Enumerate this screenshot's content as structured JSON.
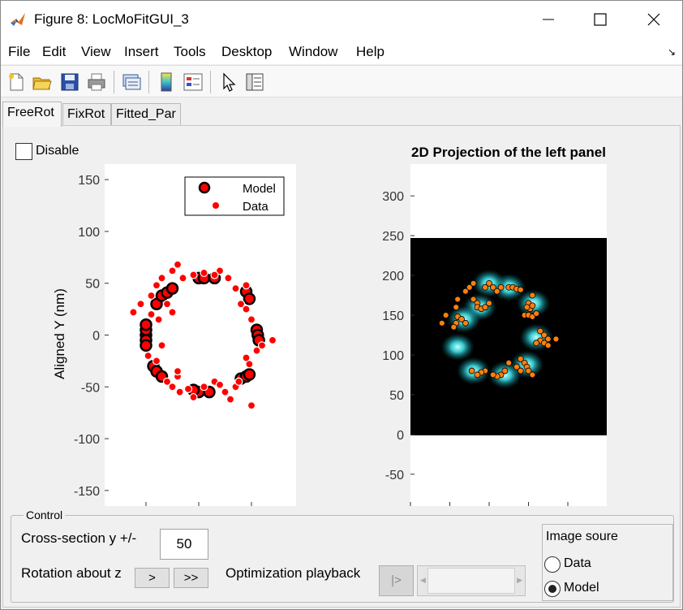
{
  "window": {
    "title": "Figure 8: LocMoFitGUI_3"
  },
  "menu": [
    "File",
    "Edit",
    "View",
    "Insert",
    "Tools",
    "Desktop",
    "Window",
    "Help"
  ],
  "tabs": [
    "FreeRot",
    "FixRot",
    "Fitted_Par"
  ],
  "active_tab": "FreeRot",
  "disable_checkbox": {
    "label": "Disable",
    "checked": false
  },
  "left_plot": {
    "ylabel": "Aligned Y (nm)",
    "yticks": [
      "150",
      "100",
      "50",
      "0",
      "-50",
      "-100",
      "-150"
    ],
    "legend": [
      "Model",
      "Data"
    ]
  },
  "right_plot": {
    "title": "2D Projection of the left panel",
    "yticks": [
      "300",
      "250",
      "200",
      "150",
      "100",
      "50",
      "0",
      "-50"
    ]
  },
  "chart_data": [
    {
      "type": "scatter",
      "ylabel": "Aligned Y (nm)",
      "ylim": [
        -165,
        165
      ],
      "legend": [
        "Model",
        "Data"
      ],
      "legend_position": "top-right",
      "series": [
        {
          "name": "Model",
          "color": "#ff0000",
          "edge": "#000000",
          "points": [
            [
              -40,
              30
            ],
            [
              -35,
              38
            ],
            [
              -30,
              41
            ],
            [
              -25,
              45
            ],
            [
              -50,
              0
            ],
            [
              -50,
              -5
            ],
            [
              -50,
              -10
            ],
            [
              -50,
              5
            ],
            [
              -50,
              10
            ],
            [
              -43,
              -30
            ],
            [
              -40,
              -35
            ],
            [
              -35,
              -40
            ],
            [
              0,
              -55
            ],
            [
              -5,
              -53
            ],
            [
              10,
              -55
            ],
            [
              40,
              -42
            ],
            [
              45,
              -40
            ],
            [
              48,
              -38
            ],
            [
              55,
              5
            ],
            [
              56,
              0
            ],
            [
              57,
              -5
            ],
            [
              0,
              55
            ],
            [
              5,
              55
            ],
            [
              15,
              55
            ],
            [
              45,
              42
            ],
            [
              48,
              35
            ]
          ]
        },
        {
          "name": "Data",
          "color": "#ff0000",
          "points": [
            [
              -55,
              30
            ],
            [
              -62,
              22
            ],
            [
              -45,
              20
            ],
            [
              -38,
              15
            ],
            [
              -48,
              -20
            ],
            [
              -40,
              -25
            ],
            [
              -30,
              -45
            ],
            [
              -20,
              -40
            ],
            [
              -25,
              -50
            ],
            [
              -18,
              -55
            ],
            [
              -10,
              -52
            ],
            [
              -5,
              -60
            ],
            [
              5,
              -50
            ],
            [
              15,
              -45
            ],
            [
              20,
              -48
            ],
            [
              25,
              -55
            ],
            [
              30,
              -62
            ],
            [
              35,
              -50
            ],
            [
              38,
              -45
            ],
            [
              50,
              -68
            ],
            [
              48,
              -28
            ],
            [
              45,
              -22
            ],
            [
              55,
              -15
            ],
            [
              60,
              -10
            ],
            [
              70,
              -5
            ],
            [
              50,
              15
            ],
            [
              45,
              25
            ],
            [
              40,
              30
            ],
            [
              35,
              45
            ],
            [
              45,
              48
            ],
            [
              28,
              55
            ],
            [
              20,
              62
            ],
            [
              15,
              58
            ],
            [
              5,
              60
            ],
            [
              -5,
              58
            ],
            [
              -15,
              55
            ],
            [
              -20,
              68
            ],
            [
              -25,
              62
            ],
            [
              -35,
              55
            ],
            [
              -40,
              48
            ],
            [
              -45,
              38
            ],
            [
              -30,
              30
            ],
            [
              -25,
              22
            ],
            [
              -35,
              -10
            ],
            [
              -20,
              -35
            ]
          ]
        }
      ]
    },
    {
      "type": "heatmap",
      "title": "2D Projection of the left panel",
      "ylim": [
        -90,
        340
      ],
      "image_extent_y": [
        0,
        250
      ],
      "colormap": "black-cyan-white",
      "series": [
        {
          "name": "Data",
          "color": "#ff7f0e",
          "points": [
            [
              95,
              185
            ],
            [
              100,
              190
            ],
            [
              105,
              185
            ],
            [
              110,
              180
            ],
            [
              115,
              185
            ],
            [
              125,
              185
            ],
            [
              130,
              185
            ],
            [
              135,
              183
            ],
            [
              140,
              182
            ],
            [
              80,
              190
            ],
            [
              75,
              185
            ],
            [
              70,
              180
            ],
            [
              80,
              170
            ],
            [
              85,
              165
            ],
            [
              85,
              160
            ],
            [
              90,
              158
            ],
            [
              95,
              160
            ],
            [
              100,
              165
            ],
            [
              60,
              170
            ],
            [
              58,
              160
            ],
            [
              60,
              148
            ],
            [
              65,
              145
            ],
            [
              70,
              140
            ],
            [
              58,
              140
            ],
            [
              55,
              135
            ],
            [
              155,
              175
            ],
            [
              150,
              165
            ],
            [
              152,
              158
            ],
            [
              148,
              160
            ],
            [
              155,
              162
            ],
            [
              145,
              150
            ],
            [
              150,
              150
            ],
            [
              155,
              148
            ],
            [
              160,
              152
            ],
            [
              165,
              130
            ],
            [
              170,
              125
            ],
            [
              175,
              120
            ],
            [
              165,
              118
            ],
            [
              160,
              115
            ],
            [
              170,
              115
            ],
            [
              175,
              112
            ],
            [
              140,
              95
            ],
            [
              145,
              90
            ],
            [
              148,
              85
            ],
            [
              150,
              80
            ],
            [
              155,
              75
            ],
            [
              140,
              80
            ],
            [
              135,
              85
            ],
            [
              125,
              90
            ],
            [
              120,
              80
            ],
            [
              115,
              75
            ],
            [
              110,
              73
            ],
            [
              105,
              75
            ],
            [
              95,
              80
            ],
            [
              90,
              78
            ],
            [
              85,
              75
            ],
            [
              78,
              80
            ],
            [
              45,
              150
            ],
            [
              40,
              140
            ],
            [
              185,
              120
            ]
          ]
        }
      ]
    }
  ],
  "control": {
    "frame_title": "Control",
    "cross_section_label": "Cross-section y +/-",
    "cross_section_value": "50",
    "rotation_label": "Rotation about z",
    "rot_btn1": ">",
    "rot_btn2": ">>",
    "playback_label": "Optimization playback",
    "play_btn": "|>",
    "image_source": {
      "title": "Image soure",
      "options": [
        "Data",
        "Model"
      ],
      "selected": "Model"
    }
  }
}
